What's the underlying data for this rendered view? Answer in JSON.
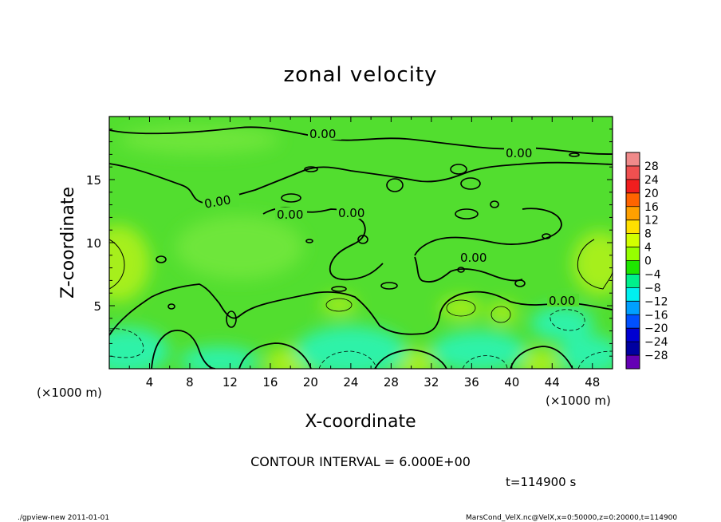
{
  "chart_data": {
    "type": "heatmap",
    "title": "zonal velocity",
    "xlabel": "X-coordinate",
    "ylabel": "Z-coordinate",
    "x_unit_label": "(×1000 m)",
    "y_unit_label": "(×1000 m)",
    "xlim": [
      0,
      50
    ],
    "ylim": [
      0,
      20
    ],
    "x_ticks": [
      4,
      8,
      12,
      16,
      20,
      24,
      28,
      32,
      36,
      40,
      44,
      48
    ],
    "y_ticks": [
      5,
      10,
      15
    ],
    "colorbar": {
      "labels": [
        "28",
        "24",
        "20",
        "16",
        "12",
        "8",
        "4",
        "0",
        "−4",
        "−8",
        "−12",
        "−16",
        "−20",
        "−24",
        "−28"
      ],
      "colors": [
        "#f08a8a",
        "#f05050",
        "#f01e1e",
        "#ff6400",
        "#ffa000",
        "#ffe000",
        "#d2ff00",
        "#96ff00",
        "#1ee600",
        "#00f08c",
        "#00f0f0",
        "#00a0ff",
        "#0050ff",
        "#0000d2",
        "#0000a0",
        "#6400b4"
      ]
    },
    "contour_labels": [
      "0.00",
      "0.00",
      "0.00",
      "0.00",
      "0.00",
      "0.00",
      "0.00"
    ],
    "contour_interval_text": "CONTOUR INTERVAL = 6.000E+00",
    "time_text": "t=114900 s"
  },
  "footer": {
    "left": "./gpview-new  2011-01-01",
    "right": "MarsCond_VelX.nc@VelX,x=0:50000,z=0:20000,t=114900"
  },
  "colors": {
    "field_base": "#52de2f",
    "positive_patch": "#a6ef1f",
    "negative_patch": "#2ff2a8"
  }
}
